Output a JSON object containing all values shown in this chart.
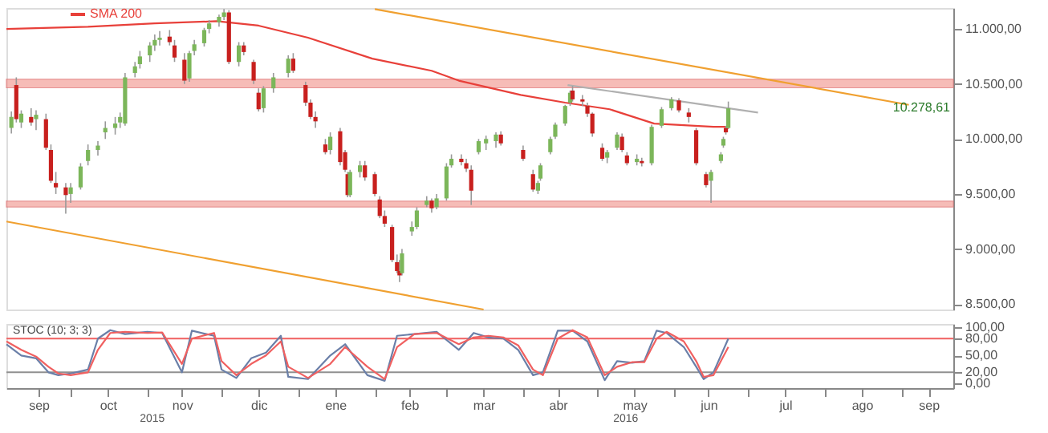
{
  "chart_data": [
    {
      "type": "candlestick",
      "legend": "top left",
      "tick_labels": "y",
      "x": [
        "2015-09-07",
        "2015-09-09",
        "2015-09-11",
        "2015-09-15",
        "2015-09-17",
        "2015-09-21",
        "2015-09-23",
        "2015-09-25",
        "2015-09-29",
        "2015-10-01",
        "2015-10-05",
        "2015-10-08",
        "2015-10-12",
        "2015-10-15",
        "2015-10-19",
        "2015-10-21",
        "2015-10-23",
        "2015-10-27",
        "2015-10-29",
        "2015-11-02",
        "2015-11-04",
        "2015-11-06",
        "2015-11-10",
        "2015-11-12",
        "2015-11-16",
        "2015-11-18",
        "2015-11-20",
        "2015-11-24",
        "2015-11-26",
        "2015-11-30",
        "2015-12-02",
        "2015-12-04",
        "2015-12-08",
        "2015-12-10",
        "2015-12-14",
        "2015-12-16",
        "2015-12-18",
        "2015-12-22",
        "2015-12-28",
        "2015-12-30",
        "2016-01-04",
        "2016-01-06",
        "2016-01-08",
        "2016-01-12",
        "2016-01-14",
        "2016-01-18",
        "2016-01-20",
        "2016-01-21",
        "2016-01-22",
        "2016-01-26",
        "2016-01-28",
        "2016-02-01",
        "2016-02-03",
        "2016-02-05",
        "2016-02-08",
        "2016-02-10",
        "2016-02-11",
        "2016-02-12",
        "2016-02-16",
        "2016-02-18",
        "2016-02-22",
        "2016-02-24",
        "2016-02-26",
        "2016-03-01",
        "2016-03-03",
        "2016-03-07",
        "2016-03-09",
        "2016-03-11",
        "2016-03-14",
        "2016-03-17",
        "2016-03-21",
        "2016-03-23",
        "2016-04-01",
        "2016-04-05",
        "2016-04-07",
        "2016-04-08",
        "2016-04-12",
        "2016-04-14",
        "2016-04-18",
        "2016-04-20",
        "2016-04-21",
        "2016-04-25",
        "2016-04-27",
        "2016-04-29",
        "2016-05-03",
        "2016-05-05",
        "2016-05-09",
        "2016-05-11",
        "2016-05-13",
        "2016-05-17",
        "2016-05-19",
        "2016-05-23",
        "2016-05-27",
        "2016-05-31",
        "2016-06-03",
        "2016-06-07",
        "2016-06-10",
        "2016-06-14",
        "2016-06-16",
        "2016-06-20",
        "2016-06-21",
        "2016-06-22",
        "2016-06-23"
      ],
      "ohlc": [
        [
          10100,
          10250,
          10050,
          10200
        ],
        [
          10490,
          10560,
          10150,
          10180
        ],
        [
          10150,
          10260,
          10100,
          10230
        ],
        [
          10200,
          10280,
          10120,
          10150
        ],
        [
          10180,
          10260,
          10080,
          10220
        ],
        [
          10180,
          10230,
          9900,
          9920
        ],
        [
          9900,
          9950,
          9600,
          9620
        ],
        [
          9600,
          9700,
          9500,
          9560
        ],
        [
          9560,
          9600,
          9320,
          9490
        ],
        [
          9500,
          9600,
          9420,
          9560
        ],
        [
          9560,
          9780,
          9540,
          9750
        ],
        [
          9800,
          9950,
          9760,
          9900
        ],
        [
          9900,
          9980,
          9850,
          9940
        ],
        [
          10060,
          10160,
          10000,
          10100
        ],
        [
          10100,
          10200,
          10040,
          10140
        ],
        [
          10150,
          10240,
          10100,
          10200
        ],
        [
          10140,
          10600,
          10120,
          10560
        ],
        [
          10600,
          10700,
          10560,
          10660
        ],
        [
          10680,
          10800,
          10640,
          10750
        ],
        [
          10760,
          10880,
          10700,
          10850
        ],
        [
          10850,
          10950,
          10800,
          10900
        ],
        [
          10900,
          10980,
          10850,
          10920
        ],
        [
          10930,
          10990,
          10850,
          10880
        ],
        [
          10850,
          10900,
          10700,
          10740
        ],
        [
          10720,
          10780,
          10500,
          10530
        ],
        [
          10550,
          10800,
          10520,
          10780
        ],
        [
          10800,
          10900,
          10760,
          10860
        ],
        [
          10870,
          11010,
          10840,
          10990
        ],
        [
          11000,
          11080,
          10960,
          11050
        ],
        [
          11060,
          11130,
          11020,
          11110
        ],
        [
          11110,
          11180,
          11080,
          11150
        ],
        [
          11150,
          11170,
          10680,
          10700
        ],
        [
          10700,
          10880,
          10660,
          10850
        ],
        [
          10850,
          10880,
          10760,
          10790
        ],
        [
          10700,
          10720,
          10500,
          10530
        ],
        [
          10420,
          10460,
          10250,
          10270
        ],
        [
          10280,
          10480,
          10240,
          10460
        ],
        [
          10460,
          10600,
          10420,
          10560
        ],
        [
          10600,
          10760,
          10560,
          10730
        ],
        [
          10730,
          10780,
          10600,
          10620
        ],
        [
          10490,
          10520,
          10300,
          10330
        ],
        [
          10330,
          10360,
          10180,
          10200
        ],
        [
          10200,
          10250,
          10100,
          10160
        ],
        [
          9950,
          10000,
          9860,
          9880
        ],
        [
          9900,
          10060,
          9860,
          10020
        ],
        [
          10070,
          10100,
          9760,
          9790
        ],
        [
          9880,
          9900,
          9700,
          9720
        ],
        [
          9680,
          9700,
          9470,
          9490
        ],
        [
          9490,
          9720,
          9470,
          9700
        ],
        [
          9700,
          9800,
          9650,
          9760
        ],
        [
          9760,
          9800,
          9620,
          9650
        ],
        [
          9680,
          9700,
          9480,
          9500
        ],
        [
          9450,
          9480,
          9280,
          9300
        ],
        [
          9300,
          9350,
          9200,
          9230
        ],
        [
          9200,
          9220,
          8880,
          8900
        ],
        [
          8880,
          8950,
          8780,
          8800
        ],
        [
          8800,
          8900,
          8700,
          8760
        ],
        [
          8780,
          9000,
          8760,
          8960
        ],
        [
          9160,
          9250,
          9120,
          9200
        ],
        [
          9200,
          9380,
          9180,
          9350
        ],
        [
          9400,
          9480,
          9380,
          9440
        ],
        [
          9440,
          9460,
          9330,
          9370
        ],
        [
          9380,
          9500,
          9360,
          9460
        ],
        [
          9460,
          9780,
          9440,
          9750
        ],
        [
          9760,
          9860,
          9740,
          9820
        ],
        [
          9820,
          9860,
          9760,
          9790
        ],
        [
          9780,
          9820,
          9700,
          9730
        ],
        [
          9720,
          9760,
          9400,
          9530
        ],
        [
          9880,
          10000,
          9860,
          9980
        ],
        [
          9960,
          10030,
          9900,
          10000
        ],
        [
          9980,
          10060,
          9920,
          10040
        ],
        [
          10040,
          10070,
          9940,
          9960
        ],
        [
          9900,
          9940,
          9800,
          9820
        ],
        [
          9680,
          9720,
          9520,
          9540
        ],
        [
          9530,
          9620,
          9500,
          9600
        ],
        [
          9640,
          9780,
          9620,
          9760
        ],
        [
          9880,
          10020,
          9860,
          10000
        ],
        [
          10020,
          10150,
          10000,
          10130
        ],
        [
          10140,
          10310,
          10120,
          10300
        ],
        [
          10330,
          10440,
          10300,
          10420
        ],
        [
          10440,
          10480,
          10340,
          10360
        ],
        [
          10360,
          10400,
          10300,
          10340
        ],
        [
          10300,
          10330,
          10200,
          10230
        ],
        [
          10230,
          10240,
          10020,
          10050
        ],
        [
          9920,
          9960,
          9800,
          9820
        ],
        [
          9830,
          9900,
          9780,
          9880
        ],
        [
          9920,
          10060,
          9900,
          10040
        ],
        [
          10020,
          10050,
          9880,
          9900
        ],
        [
          9850,
          9880,
          9760,
          9780
        ],
        [
          9790,
          9860,
          9760,
          9820
        ],
        [
          9800,
          9830,
          9750,
          9780
        ],
        [
          9780,
          10130,
          9760,
          10110
        ],
        [
          10120,
          10290,
          10100,
          10270
        ],
        [
          10280,
          10380,
          10260,
          10360
        ],
        [
          10350,
          10370,
          10240,
          10260
        ],
        [
          10240,
          10280,
          10150,
          10200
        ],
        [
          10080,
          10100,
          9760,
          9780
        ],
        [
          9680,
          9700,
          9560,
          9580
        ],
        [
          9620,
          9720,
          9420,
          9700
        ],
        [
          9800,
          9880,
          9780,
          9860
        ],
        [
          9940,
          10020,
          9920,
          10000
        ],
        [
          10100,
          10120,
          10040,
          10060
        ],
        [
          10100,
          10340,
          10090,
          10278.61
        ]
      ],
      "series": [
        {
          "name": "SMA 200",
          "type": "line",
          "color": "#e8403a",
          "x": [
            "2015-09-05",
            "2015-10-08",
            "2015-11-04",
            "2015-11-29",
            "2015-12-16",
            "2016-01-05",
            "2016-01-31",
            "2016-02-24",
            "2016-03-06",
            "2016-03-31",
            "2016-04-18",
            "2016-05-06",
            "2016-05-24",
            "2016-06-17",
            "2016-06-23"
          ],
          "values": [
            11000,
            11020,
            11050,
            11070,
            11030,
            10920,
            10730,
            10620,
            10530,
            10400,
            10330,
            10270,
            10140,
            10110,
            10110
          ]
        },
        {
          "type": "line",
          "color": "#f0a030",
          "x": [
            "2016-02-01",
            "2016-09-04"
          ],
          "values": [
            11180,
            10310
          ]
        },
        {
          "type": "line",
          "color": "#f0a030",
          "x": [
            "2015-09-05",
            "2016-03-16"
          ],
          "values": [
            9250,
            8450
          ]
        },
        {
          "type": "line",
          "color": "#b0b0b0",
          "x": [
            "2016-04-19",
            "2016-07-05"
          ],
          "values": [
            10490,
            10240
          ]
        }
      ],
      "bands": [
        {
          "axis": "y",
          "from": 10465,
          "to": 10543,
          "color": "#f4a6a0"
        },
        {
          "axis": "y",
          "from": 9382,
          "to": 9434,
          "color": "#f4a6a0"
        }
      ],
      "annotations": [
        "10.278,61"
      ],
      "xlim": [
        "2015-09-05",
        "2016-09-22"
      ],
      "ylim": [
        8450,
        11190
      ],
      "yticks": [
        {
          "value": 8500,
          "label": "8.500,00"
        },
        {
          "value": 9000,
          "label": "9.000,00"
        },
        {
          "value": 9500,
          "label": "9.500,00"
        },
        {
          "value": 10000,
          "label": "10.000,00"
        },
        {
          "value": 10500,
          "label": "10.500,00"
        },
        {
          "value": 11000,
          "label": "11.000,00"
        }
      ]
    },
    {
      "type": "line",
      "title": "STOC (10; 3; 3)",
      "x": [
        "2015-09-05",
        "2015-09-11",
        "2015-09-17",
        "2015-09-22",
        "2015-09-26",
        "2015-10-01",
        "2015-10-08",
        "2015-10-12",
        "2015-10-17",
        "2015-10-23",
        "2015-11-01",
        "2015-11-07",
        "2015-11-15",
        "2015-11-19",
        "2015-11-28",
        "2015-12-01",
        "2015-12-07",
        "2015-12-13",
        "2015-12-19",
        "2015-12-25",
        "2015-12-28",
        "2016-01-05",
        "2016-01-14",
        "2016-01-20",
        "2016-01-29",
        "2016-02-05",
        "2016-02-10",
        "2016-02-17",
        "2016-02-26",
        "2016-03-06",
        "2016-03-12",
        "2016-03-18",
        "2016-03-24",
        "2016-03-30",
        "2016-04-05",
        "2016-04-09",
        "2016-04-15",
        "2016-04-21",
        "2016-04-27",
        "2016-05-04",
        "2016-05-09",
        "2016-05-15",
        "2016-05-20",
        "2016-05-25",
        "2016-05-29",
        "2016-06-05",
        "2016-06-10",
        "2016-06-13",
        "2016-06-17",
        "2016-06-23"
      ],
      "series": [
        {
          "color": "#6a7fa8",
          "values": [
            70,
            50,
            45,
            20,
            15,
            18,
            25,
            80,
            95,
            88,
            92,
            90,
            20,
            94,
            85,
            25,
            10,
            45,
            55,
            85,
            12,
            8,
            50,
            70,
            15,
            5,
            85,
            88,
            92,
            60,
            90,
            82,
            80,
            60,
            15,
            20,
            94,
            94,
            75,
            6,
            40,
            37,
            40,
            94,
            90,
            65,
            30,
            8,
            20,
            80
          ]
        },
        {
          "color": "#f06060",
          "values": [
            75,
            60,
            48,
            30,
            18,
            15,
            20,
            60,
            90,
            92,
            90,
            91,
            35,
            80,
            90,
            40,
            15,
            35,
            50,
            75,
            30,
            10,
            35,
            65,
            30,
            8,
            65,
            88,
            90,
            70,
            82,
            85,
            82,
            68,
            25,
            15,
            80,
            95,
            82,
            15,
            30,
            38,
            38,
            80,
            92,
            75,
            40,
            12,
            15,
            65
          ]
        }
      ],
      "ref_lines": [
        {
          "axis": "y",
          "value": 80,
          "color": "#f06060"
        },
        {
          "axis": "y",
          "value": 20,
          "color": "#909090"
        }
      ],
      "annotations": [
        "2015",
        "2016"
      ],
      "xlim": [
        "2015-09-05",
        "2016-09-22"
      ],
      "ylim": [
        -8,
        106
      ],
      "xticks": [
        {
          "value": "2015-10-01",
          "label": null
        },
        {
          "value": "2015-09-18",
          "label": "sep"
        },
        {
          "value": "2015-10-16",
          "label": "oct"
        },
        {
          "value": "2015-11-01",
          "label": null
        },
        {
          "value": "2015-11-15",
          "label": "nov"
        },
        {
          "value": "2015-12-01",
          "label": null
        },
        {
          "value": "2015-12-16",
          "label": "dic"
        },
        {
          "value": "2016-01-01",
          "label": null
        },
        {
          "value": "2016-01-16",
          "label": "ene"
        },
        {
          "value": "2016-02-01",
          "label": null
        },
        {
          "value": "2016-02-15",
          "label": "feb"
        },
        {
          "value": "2016-03-01",
          "label": null
        },
        {
          "value": "2016-03-16",
          "label": "mar"
        },
        {
          "value": "2016-04-01",
          "label": null
        },
        {
          "value": "2016-04-15",
          "label": "abr"
        },
        {
          "value": "2016-05-01",
          "label": null
        },
        {
          "value": "2016-05-16",
          "label": "may"
        },
        {
          "value": "2016-06-01",
          "label": null
        },
        {
          "value": "2016-06-15",
          "label": "jun"
        },
        {
          "value": "2016-07-01",
          "label": null
        },
        {
          "value": "2016-07-16",
          "label": "jul"
        },
        {
          "value": "2016-08-01",
          "label": null
        },
        {
          "value": "2016-08-16",
          "label": "ago"
        },
        {
          "value": "2016-09-01",
          "label": null
        },
        {
          "value": "2016-09-12",
          "label": "sep"
        }
      ],
      "yticks": [
        {
          "value": 0,
          "label": "0,00"
        },
        {
          "value": 20,
          "label": "20,00"
        },
        {
          "value": 50,
          "label": "50,00"
        },
        {
          "value": 80,
          "label": "80,00"
        },
        {
          "value": 100,
          "label": "100,00"
        }
      ]
    }
  ]
}
